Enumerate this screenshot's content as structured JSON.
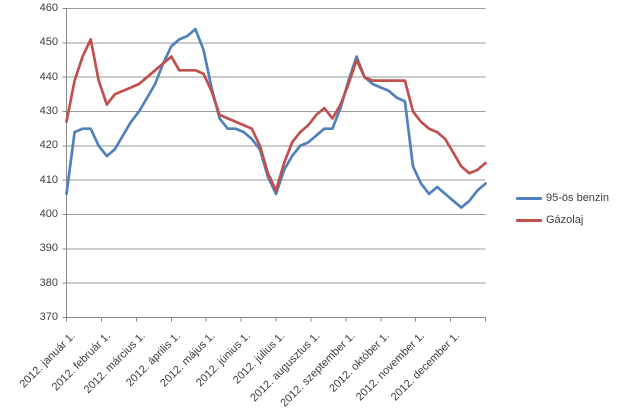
{
  "chart_data": {
    "type": "line",
    "title": "",
    "x_sampling": "weekly",
    "x_axis": {
      "tick_labels": [
        "2012. január 1.",
        "2012. február 1.",
        "2012. március 1.",
        "2012. április 1.",
        "2012. május 1.",
        "2012. június 1.",
        "2012. július 1.",
        "2012. augusztus 1.",
        "2012. szeptember 1.",
        "2012. október 1.",
        "2012. november 1.",
        "2012. december 1."
      ]
    },
    "y_axis": {
      "min": 370,
      "max": 460,
      "step": 10
    },
    "grid": "horizontal",
    "legend_position": "right",
    "series": [
      {
        "name": "95-ös benzin",
        "color": "#4F81BD",
        "values": [
          406,
          424,
          425,
          425,
          420,
          417,
          419,
          423,
          427,
          430,
          434,
          438,
          444,
          449,
          451,
          452,
          454,
          448,
          437,
          428,
          425,
          425,
          424,
          422,
          419,
          411,
          406,
          413,
          417,
          420,
          421,
          423,
          425,
          425,
          431,
          439,
          446,
          440,
          438,
          437,
          436,
          434,
          433,
          414,
          409,
          406,
          408,
          406,
          404,
          402,
          404,
          407,
          409
        ]
      },
      {
        "name": "Gázolaj",
        "color": "#C0504D",
        "values": [
          427,
          439,
          446,
          451,
          439,
          432,
          435,
          436,
          437,
          438,
          440,
          442,
          444,
          446,
          442,
          442,
          442,
          441,
          436,
          429,
          428,
          427,
          426,
          425,
          420,
          412,
          407,
          415,
          421,
          424,
          426,
          429,
          431,
          428,
          432,
          438,
          445,
          440,
          439,
          439,
          439,
          439,
          439,
          430,
          427,
          425,
          424,
          422,
          418,
          414,
          412,
          413,
          415
        ]
      }
    ],
    "colors": {
      "gridline": "#9a9a9a",
      "axis": "#8a8a8a",
      "text": "#3d3d3d",
      "background": "#ffffff"
    }
  }
}
